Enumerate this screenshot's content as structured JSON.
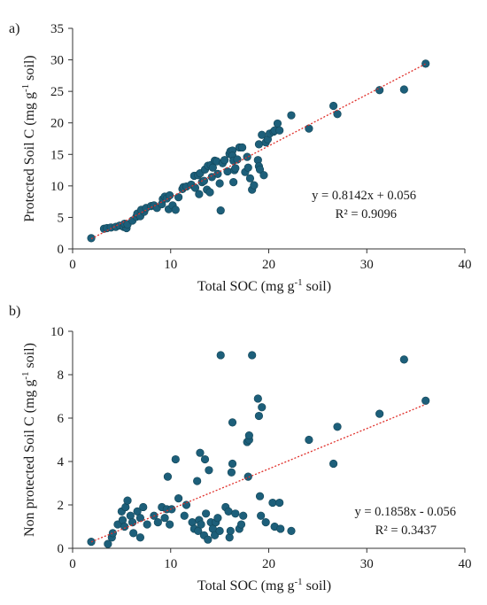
{
  "chart_data": [
    {
      "type": "scatter",
      "panel_label": "a)",
      "xlabel": "Total SOC (mg g⁻¹ soil)",
      "ylabel": "Protected Soil C (mg g⁻¹ soil)",
      "xlim": [
        0,
        40
      ],
      "ylim": [
        0,
        35
      ],
      "xticks": [
        "0",
        "10",
        "20",
        "30",
        "40"
      ],
      "yticks": [
        "0",
        "5",
        "10",
        "15",
        "20",
        "25",
        "30",
        "35"
      ],
      "grid": false,
      "marker_color": "#1d5f7a",
      "trendline": {
        "slope": 0.8142,
        "intercept": 0.056,
        "color": "#e0302b",
        "style": "dotted"
      },
      "annotation": {
        "equation": "y = 0.8142x + 0.056",
        "r2": "R² = 0.9096"
      },
      "points": [
        [
          1.9,
          1.7
        ],
        [
          3.2,
          3.2
        ],
        [
          3.5,
          3.3
        ],
        [
          3.9,
          3.4
        ],
        [
          4.4,
          3.5
        ],
        [
          4.8,
          3.7
        ],
        [
          5.2,
          3.5
        ],
        [
          5.5,
          3.3
        ],
        [
          5.3,
          4.0
        ],
        [
          5.6,
          3.9
        ],
        [
          6.1,
          4.5
        ],
        [
          6.5,
          5.1
        ],
        [
          6.6,
          5.6
        ],
        [
          6.9,
          5.2
        ],
        [
          7.3,
          5.9
        ],
        [
          7.0,
          6.2
        ],
        [
          7.5,
          6.5
        ],
        [
          8.0,
          6.8
        ],
        [
          8.3,
          6.9
        ],
        [
          8.6,
          6.5
        ],
        [
          9.1,
          7.1
        ],
        [
          9.2,
          7.9
        ],
        [
          9.4,
          8.3
        ],
        [
          9.6,
          8.0
        ],
        [
          9.9,
          8.5
        ],
        [
          9.8,
          6.3
        ],
        [
          10.2,
          6.9
        ],
        [
          10.5,
          6.2
        ],
        [
          10.8,
          8.2
        ],
        [
          11.2,
          9.5
        ],
        [
          11.3,
          9.8
        ],
        [
          11.6,
          9.9
        ],
        [
          12.1,
          10.2
        ],
        [
          12.4,
          11.6
        ],
        [
          12.8,
          11.7
        ],
        [
          12.5,
          9.7
        ],
        [
          12.9,
          8.7
        ],
        [
          13.0,
          12.0
        ],
        [
          13.2,
          10.6
        ],
        [
          13.5,
          12.6
        ],
        [
          13.4,
          10.8
        ],
        [
          13.7,
          9.4
        ],
        [
          13.8,
          13.2
        ],
        [
          14.1,
          13.3
        ],
        [
          14.0,
          9.0
        ],
        [
          14.3,
          12.9
        ],
        [
          14.5,
          14.0
        ],
        [
          14.2,
          11.4
        ],
        [
          14.7,
          13.9
        ],
        [
          14.8,
          11.9
        ],
        [
          15.0,
          10.4
        ],
        [
          15.1,
          6.1
        ],
        [
          15.3,
          13.6
        ],
        [
          15.5,
          14.1
        ],
        [
          15.8,
          12.3
        ],
        [
          16.0,
          15.1
        ],
        [
          16.1,
          15.5
        ],
        [
          16.3,
          15.6
        ],
        [
          16.3,
          14.8
        ],
        [
          16.4,
          14.0
        ],
        [
          16.5,
          12.5
        ],
        [
          16.4,
          10.6
        ],
        [
          16.6,
          12.8
        ],
        [
          16.8,
          14.2
        ],
        [
          17.0,
          16.1
        ],
        [
          17.3,
          16.1
        ],
        [
          17.6,
          12.2
        ],
        [
          17.8,
          14.6
        ],
        [
          17.9,
          12.9
        ],
        [
          18.1,
          11.2
        ],
        [
          18.3,
          9.4
        ],
        [
          18.5,
          10.1
        ],
        [
          18.9,
          14.1
        ],
        [
          19.0,
          13.1
        ],
        [
          19.1,
          12.6
        ],
        [
          19.0,
          16.6
        ],
        [
          19.3,
          18.1
        ],
        [
          19.5,
          11.7
        ],
        [
          19.7,
          16.9
        ],
        [
          19.9,
          17.4
        ],
        [
          20.1,
          18.3
        ],
        [
          20.5,
          18.6
        ],
        [
          20.6,
          18.8
        ],
        [
          20.9,
          19.9
        ],
        [
          21.1,
          18.8
        ],
        [
          22.3,
          21.2
        ],
        [
          24.1,
          19.1
        ],
        [
          26.6,
          22.7
        ],
        [
          27.0,
          21.4
        ],
        [
          31.3,
          25.2
        ],
        [
          33.8,
          25.3
        ],
        [
          36.0,
          29.4
        ]
      ]
    },
    {
      "type": "scatter",
      "panel_label": "b)",
      "xlabel": "Total SOC (mg g⁻¹ soil)",
      "ylabel": "Non protected Soil C (mg g⁻¹ soil)",
      "xlim": [
        0,
        40
      ],
      "ylim": [
        0,
        10
      ],
      "xticks": [
        "0",
        "10",
        "20",
        "30",
        "40"
      ],
      "yticks": [
        "0",
        "2",
        "4",
        "6",
        "8",
        "10"
      ],
      "grid": false,
      "marker_color": "#1d5f7a",
      "trendline": {
        "slope": 0.1858,
        "intercept": -0.056,
        "color": "#e0302b",
        "style": "dotted"
      },
      "annotation": {
        "equation": "y = 0.1858x - 0.056",
        "r2": "R² = 0.3437"
      },
      "points": [
        [
          1.9,
          0.3
        ],
        [
          3.6,
          0.2
        ],
        [
          4.0,
          0.5
        ],
        [
          4.1,
          0.7
        ],
        [
          4.6,
          1.1
        ],
        [
          5.1,
          1.3
        ],
        [
          5.0,
          1.7
        ],
        [
          5.3,
          1.0
        ],
        [
          5.4,
          1.9
        ],
        [
          5.6,
          2.2
        ],
        [
          5.9,
          1.5
        ],
        [
          6.1,
          1.2
        ],
        [
          6.2,
          0.7
        ],
        [
          6.6,
          1.7
        ],
        [
          6.9,
          0.5
        ],
        [
          6.9,
          1.4
        ],
        [
          7.2,
          1.9
        ],
        [
          7.6,
          1.1
        ],
        [
          8.3,
          1.5
        ],
        [
          8.7,
          1.2
        ],
        [
          9.1,
          1.9
        ],
        [
          9.4,
          1.4
        ],
        [
          9.6,
          1.8
        ],
        [
          9.7,
          3.3
        ],
        [
          9.9,
          1.1
        ],
        [
          10.1,
          1.8
        ],
        [
          10.5,
          4.1
        ],
        [
          10.8,
          2.3
        ],
        [
          11.4,
          1.5
        ],
        [
          11.6,
          2.0
        ],
        [
          12.2,
          1.2
        ],
        [
          12.4,
          0.9
        ],
        [
          12.7,
          3.1
        ],
        [
          12.8,
          0.8
        ],
        [
          12.9,
          1.3
        ],
        [
          13.0,
          4.4
        ],
        [
          13.1,
          1.1
        ],
        [
          13.4,
          0.6
        ],
        [
          13.5,
          4.1
        ],
        [
          13.6,
          1.6
        ],
        [
          13.8,
          0.4
        ],
        [
          13.9,
          3.6
        ],
        [
          14.1,
          1.2
        ],
        [
          14.3,
          0.9
        ],
        [
          14.5,
          0.6
        ],
        [
          14.6,
          1.2
        ],
        [
          14.8,
          1.4
        ],
        [
          15.0,
          0.8
        ],
        [
          15.1,
          8.9
        ],
        [
          15.6,
          1.9
        ],
        [
          15.9,
          1.7
        ],
        [
          16.0,
          0.5
        ],
        [
          16.1,
          0.8
        ],
        [
          16.2,
          3.5
        ],
        [
          16.3,
          5.8
        ],
        [
          16.3,
          3.9
        ],
        [
          16.6,
          1.6
        ],
        [
          17.0,
          0.9
        ],
        [
          17.2,
          1.1
        ],
        [
          17.4,
          1.5
        ],
        [
          17.8,
          4.9
        ],
        [
          17.9,
          3.3
        ],
        [
          18.0,
          5.0
        ],
        [
          18.0,
          5.2
        ],
        [
          18.3,
          8.9
        ],
        [
          18.9,
          6.9
        ],
        [
          19.0,
          6.1
        ],
        [
          19.1,
          2.4
        ],
        [
          19.2,
          1.5
        ],
        [
          19.3,
          6.5
        ],
        [
          19.7,
          1.2
        ],
        [
          20.4,
          2.1
        ],
        [
          20.6,
          1.0
        ],
        [
          21.1,
          2.1
        ],
        [
          21.2,
          0.9
        ],
        [
          22.3,
          0.8
        ],
        [
          24.1,
          5.0
        ],
        [
          26.6,
          3.9
        ],
        [
          27.0,
          5.6
        ],
        [
          31.3,
          6.2
        ],
        [
          33.8,
          8.7
        ],
        [
          36.0,
          6.8
        ]
      ]
    }
  ]
}
